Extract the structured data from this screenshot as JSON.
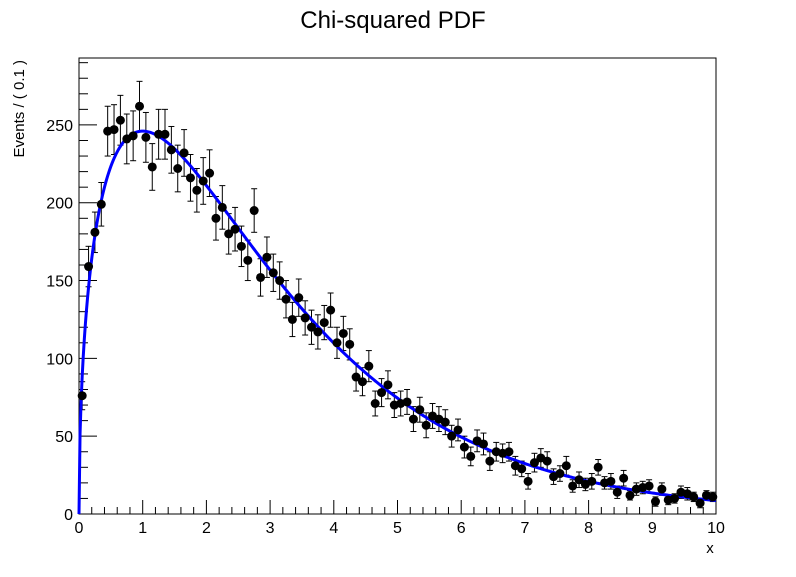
{
  "chart_data": {
    "type": "scatter",
    "title": "Chi-squared PDF",
    "xlabel": "x",
    "ylabel": "Events / ( 0.1 )",
    "xlim": [
      0,
      10
    ],
    "ylim": [
      0,
      293
    ],
    "x_ticks": [
      "0",
      "1",
      "2",
      "3",
      "4",
      "5",
      "6",
      "7",
      "8",
      "9",
      "10"
    ],
    "y_ticks": [
      "0",
      "50",
      "100",
      "150",
      "200",
      "250"
    ],
    "grid": false,
    "legend": "none",
    "colors": {
      "points": "#000000",
      "curve": "#0000ff"
    },
    "series": [
      {
        "type": "points_with_errors",
        "x": [
          0.05,
          0.15,
          0.25,
          0.35,
          0.45,
          0.55,
          0.65,
          0.75,
          0.85,
          0.95,
          1.05,
          1.15,
          1.25,
          1.35,
          1.45,
          1.55,
          1.65,
          1.75,
          1.85,
          1.95,
          2.05,
          2.15,
          2.25,
          2.35,
          2.45,
          2.55,
          2.65,
          2.75,
          2.85,
          2.95,
          3.05,
          3.15,
          3.25,
          3.35,
          3.45,
          3.55,
          3.65,
          3.75,
          3.85,
          3.95,
          4.05,
          4.15,
          4.25,
          4.35,
          4.45,
          4.55,
          4.65,
          4.75,
          4.85,
          4.95,
          5.05,
          5.15,
          5.25,
          5.35,
          5.45,
          5.55,
          5.65,
          5.75,
          5.85,
          5.95,
          6.05,
          6.15,
          6.25,
          6.35,
          6.45,
          6.55,
          6.65,
          6.75,
          6.85,
          6.95,
          7.05,
          7.15,
          7.25,
          7.35,
          7.45,
          7.55,
          7.65,
          7.75,
          7.85,
          7.95,
          8.05,
          8.15,
          8.25,
          8.35,
          8.45,
          8.55,
          8.65,
          8.75,
          8.85,
          8.95,
          9.05,
          9.15,
          9.25,
          9.35,
          9.45,
          9.55,
          9.65,
          9.75,
          9.85,
          9.95
        ],
        "y": [
          76,
          159,
          181,
          199,
          246,
          247,
          253,
          241,
          243,
          262,
          242,
          223,
          244,
          244,
          234,
          222,
          232,
          216,
          208,
          214,
          219,
          190,
          197,
          180,
          183,
          172,
          163,
          195,
          152,
          165,
          155,
          150,
          138,
          125,
          139,
          126,
          120,
          117,
          123,
          131,
          110,
          116,
          109,
          88,
          85,
          95,
          71,
          78,
          83,
          70,
          71,
          72,
          61,
          67,
          57,
          63,
          61,
          59,
          50,
          54,
          43,
          37,
          47,
          45,
          34,
          40,
          39,
          40,
          31,
          29,
          21,
          33,
          36,
          34,
          24,
          26,
          31,
          18,
          22,
          19,
          21,
          30,
          20,
          21,
          14,
          23,
          12,
          16,
          17,
          18,
          8,
          16,
          9,
          10,
          14,
          13,
          11,
          7,
          12,
          11
        ],
        "err": [
          9,
          13,
          13,
          14,
          16,
          16,
          16,
          16,
          16,
          16,
          16,
          15,
          16,
          16,
          15,
          15,
          15,
          15,
          14,
          15,
          15,
          14,
          14,
          13,
          14,
          13,
          13,
          14,
          12,
          13,
          12,
          12,
          12,
          11,
          12,
          11,
          11,
          11,
          11,
          11,
          10,
          11,
          10,
          9,
          9,
          10,
          8,
          9,
          9,
          8,
          8,
          8,
          8,
          8,
          8,
          8,
          8,
          8,
          7,
          7,
          7,
          6,
          7,
          7,
          6,
          6,
          6,
          6,
          6,
          5,
          5,
          6,
          6,
          6,
          5,
          5,
          6,
          4,
          5,
          4,
          5,
          5,
          4,
          5,
          4,
          5,
          3,
          4,
          4,
          4,
          3,
          4,
          3,
          3,
          4,
          4,
          3,
          3,
          3,
          3
        ]
      },
      {
        "type": "fit_curve",
        "model": "chi2_pdf",
        "ndf": 3,
        "peak_value": 246,
        "peak_x": 1.0
      }
    ]
  }
}
